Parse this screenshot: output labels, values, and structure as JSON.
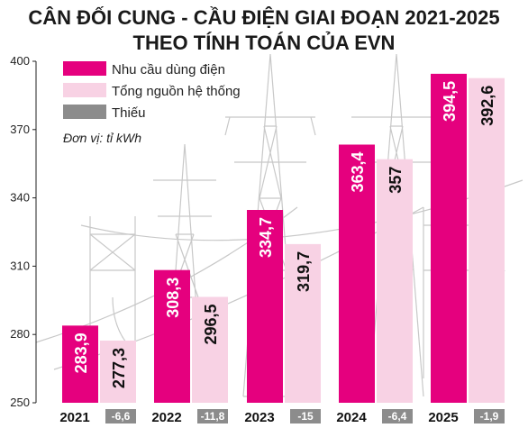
{
  "chart_data": {
    "type": "bar",
    "title_lines": [
      "CÂN ĐỐI CUNG - CẦU ĐIỆN GIAI ĐOẠN 2021-2025",
      "THEO TÍNH TOÁN CỦA EVN"
    ],
    "unit": "Đơn vị: tỉ kWh",
    "categories": [
      "2021",
      "2022",
      "2023",
      "2024",
      "2025"
    ],
    "series": [
      {
        "name": "Nhu cầu dùng điện",
        "color": "#e5007e",
        "text_color": "#ffffff",
        "values": [
          283.9,
          308.3,
          334.7,
          363.4,
          394.5
        ],
        "labels": [
          "283,9",
          "308,3",
          "334,7",
          "363,4",
          "394,5"
        ]
      },
      {
        "name": "Tổng nguồn hệ thống",
        "color": "#f8d2e4",
        "text_color": "#111111",
        "values": [
          277.3,
          296.5,
          319.7,
          357,
          392.6
        ],
        "labels": [
          "277,3",
          "296,5",
          "319,7",
          "357",
          "392,6"
        ]
      }
    ],
    "shortage": {
      "name": "Thiếu",
      "color": "#8c8c8c",
      "values": [
        -6.6,
        -11.8,
        -15,
        -6.4,
        -1.9
      ],
      "labels": [
        "-6,6",
        "-11,8",
        "-15",
        "-6,4",
        "-1,9"
      ]
    },
    "yticks": [
      "250",
      "280",
      "310",
      "340",
      "370",
      "400"
    ],
    "ylim": [
      250,
      400
    ],
    "grid": false,
    "legend_position": "top-left"
  }
}
